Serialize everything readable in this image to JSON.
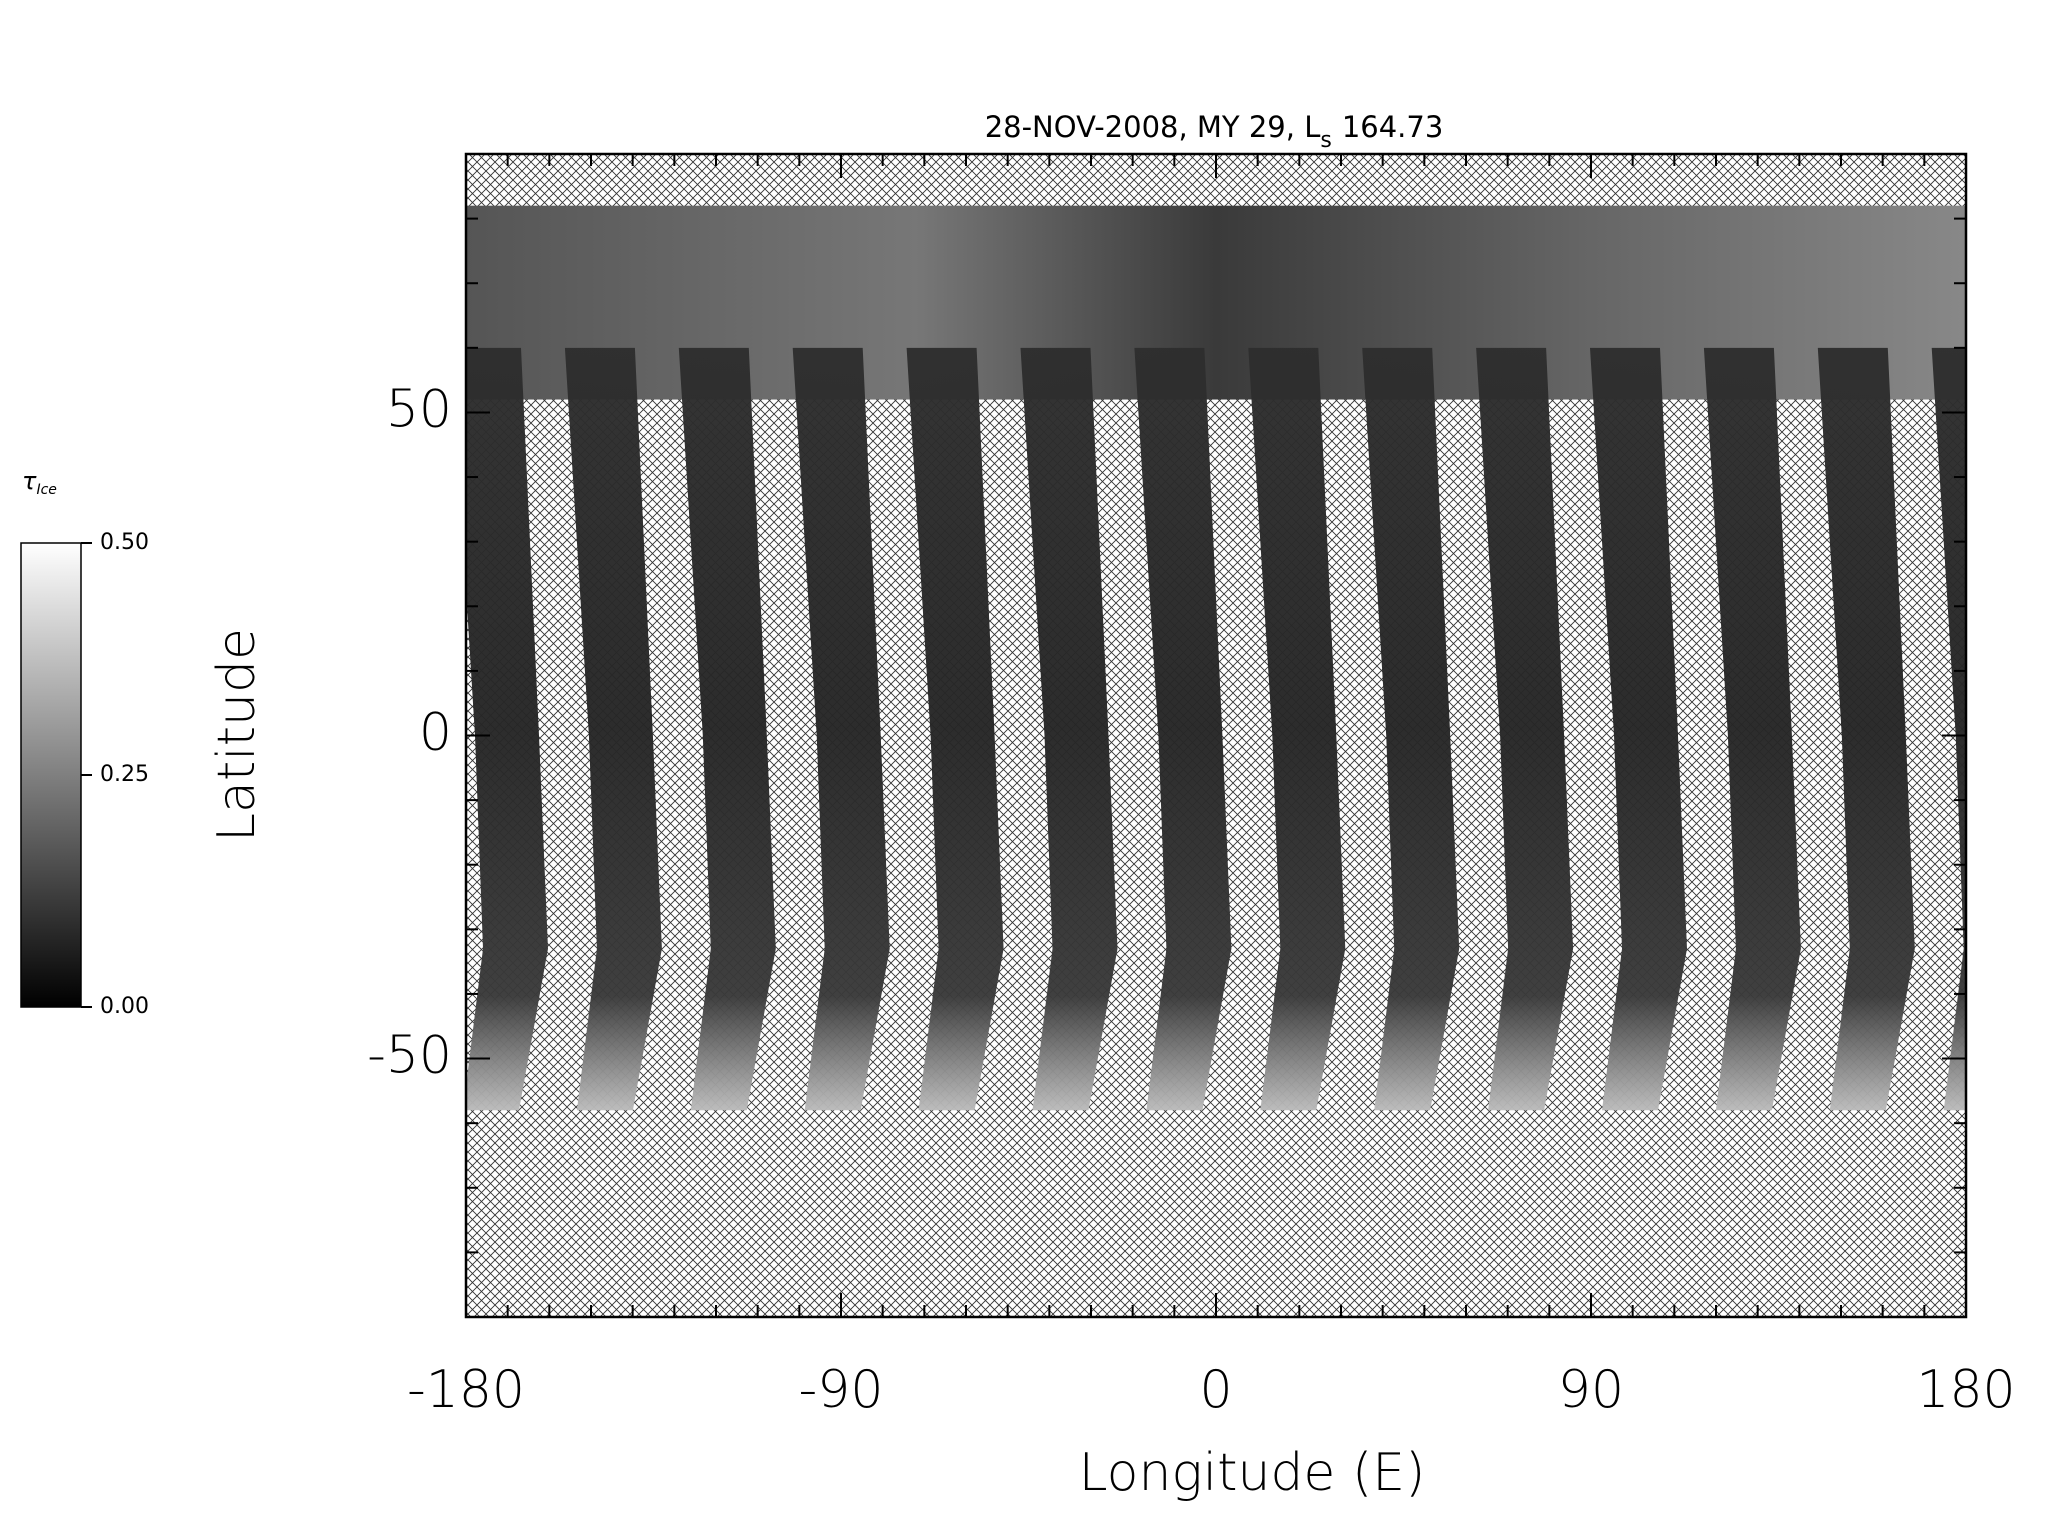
{
  "map": {
    "title": "28-NOV-2008, MY 29,  L",
    "title_subscript": "s",
    "title_value": "164.73",
    "xlabel": "Longitude (E)",
    "ylabel": "Latitude",
    "xlim": [
      -180,
      180
    ],
    "ylim": [
      -90,
      90
    ],
    "xticks": [
      -180,
      -90,
      0,
      90,
      180
    ],
    "yticks": [
      -50,
      0,
      50
    ],
    "xminorticks": [
      -170,
      -160,
      -150,
      -140,
      -130,
      -120,
      -110,
      -100,
      -80,
      -70,
      -60,
      -50,
      -40,
      -30,
      -20,
      -10,
      10,
      20,
      30,
      40,
      50,
      60,
      70,
      80,
      100,
      110,
      120,
      130,
      140,
      150,
      160,
      170
    ],
    "yminorticks": [
      -80,
      -70,
      -60,
      -40,
      -30,
      -20,
      -10,
      10,
      20,
      30,
      40,
      60,
      70,
      80
    ],
    "colorbar": {
      "label": "τ",
      "label_subscript": "Ice",
      "lim": [
        0,
        0.5
      ],
      "ticks": [
        {
          "value": 0,
          "label": "0.00"
        },
        {
          "value": 0.25,
          "label": "0.25"
        },
        {
          "value": 0.5,
          "label": "0.50"
        }
      ]
    }
  }
}
